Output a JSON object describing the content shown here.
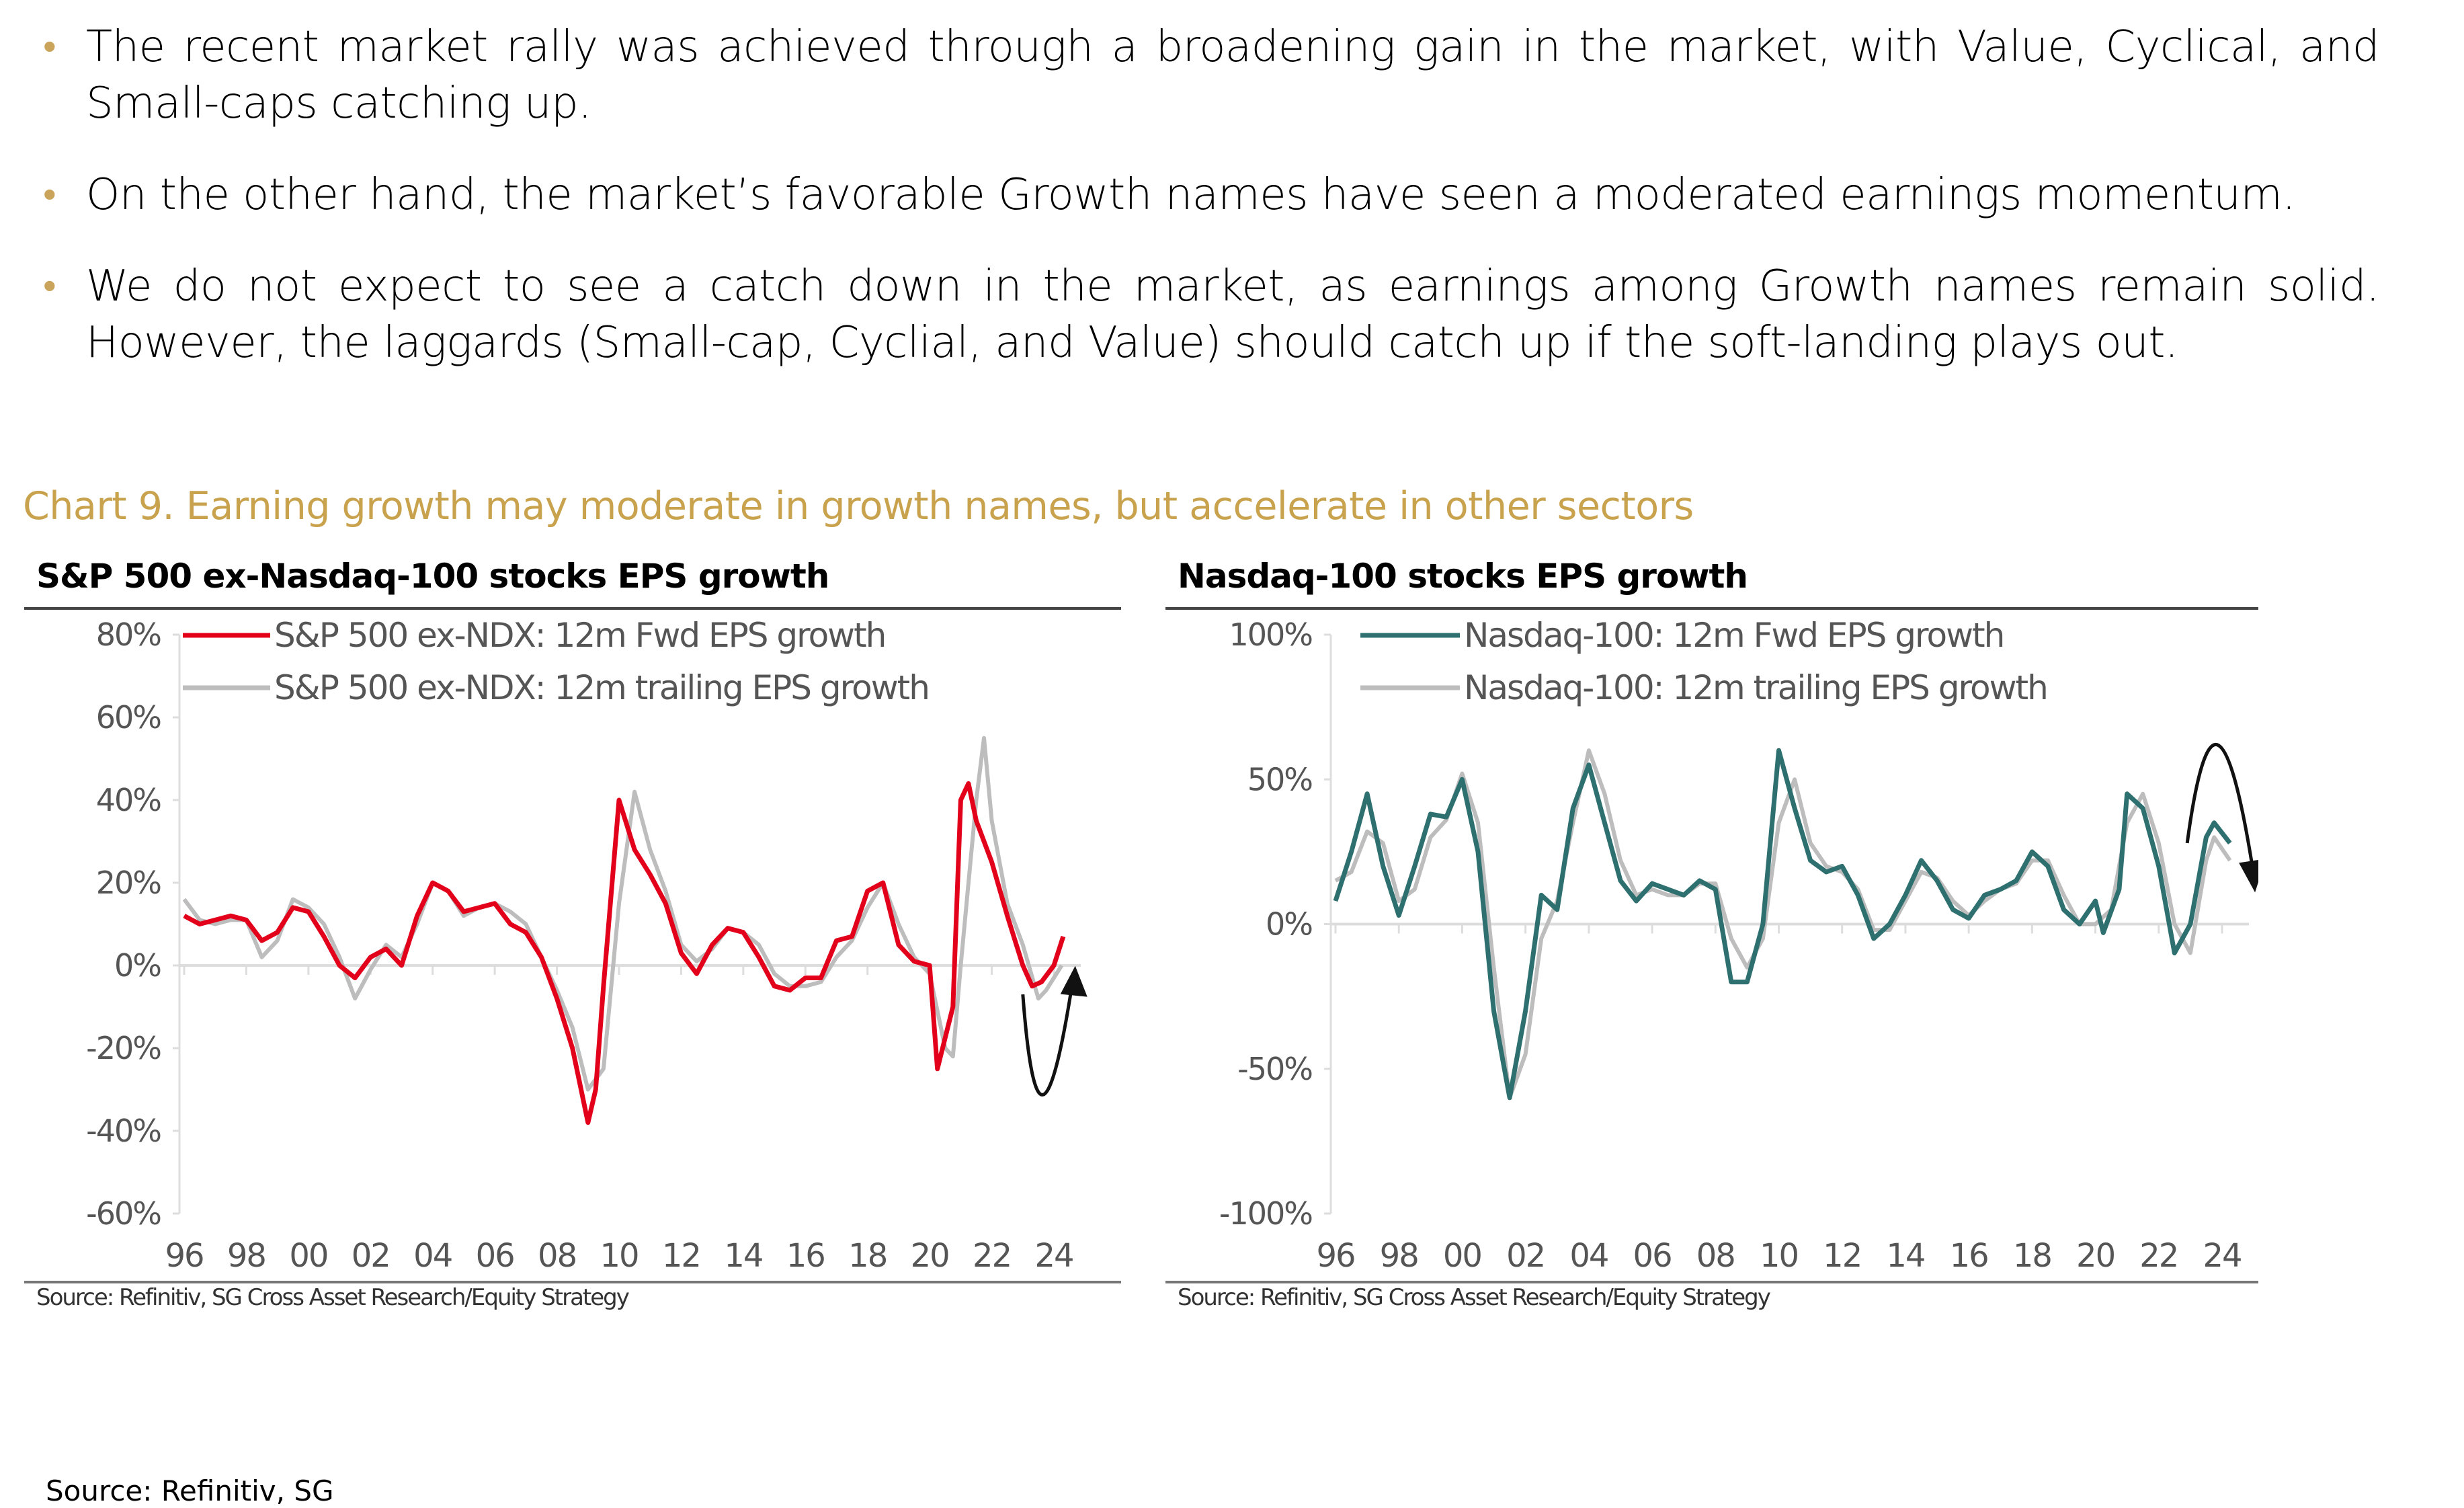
{
  "bullets": [
    "The recent market rally was achieved through a broadening gain in the market, with Value, Cyclical, and Small-caps catching up.",
    "On the other hand, the market’s favorable Growth names have seen a moderated earnings momentum.",
    "We do not expect to see a catch down in the market, as earnings among Growth names remain solid. However, the laggards (Small-cap, Cyclial, and Value) should catch up if the soft-landing plays out."
  ],
  "bullet_marker": "•",
  "caption": "Chart 9. Earning growth may moderate in growth names, but accelerate in other sectors",
  "caption_color": "#c9a24e",
  "footer_source": "Source: Refinitiv, SG",
  "chart_data": [
    {
      "type": "line",
      "title": "S&P 500 ex-Nasdaq-100 stocks EPS growth",
      "source": "Source: Refinitiv, SG Cross Asset Research/Equity Strategy",
      "xlim": [
        1996,
        2025
      ],
      "ylim": [
        -60,
        80
      ],
      "yticks": [
        80,
        60,
        40,
        20,
        0,
        -20,
        -40,
        -60
      ],
      "ytick_labels": [
        "80%",
        "60%",
        "40%",
        "20%",
        "0%",
        "-20%",
        "-40%",
        "-60%"
      ],
      "xtick_labels": [
        "96",
        "98",
        "00",
        "02",
        "04",
        "06",
        "08",
        "10",
        "12",
        "14",
        "16",
        "18",
        "20",
        "22",
        "24"
      ],
      "grid": false,
      "legend": "top-left",
      "annotation": "curved arrow pointing up",
      "series": [
        {
          "name": "S&P 500 ex-NDX: 12m Fwd EPS growth",
          "color": "#e3001b",
          "x": [
            1996,
            1996.5,
            1997,
            1997.5,
            1998,
            1998.5,
            1999,
            1999.5,
            2000,
            2000.5,
            2001,
            2001.5,
            2002,
            2002.5,
            2003,
            2003.5,
            2004,
            2004.5,
            2005,
            2005.5,
            2006,
            2006.5,
            2007,
            2007.5,
            2008,
            2008.5,
            2009,
            2009.25,
            2009.5,
            2010,
            2010.5,
            2011,
            2011.5,
            2012,
            2012.5,
            2013,
            2013.5,
            2014,
            2014.5,
            2015,
            2015.5,
            2016,
            2016.5,
            2017,
            2017.5,
            2018,
            2018.5,
            2019,
            2019.5,
            2020,
            2020.25,
            2020.75,
            2021,
            2021.25,
            2021.5,
            2022,
            2022.5,
            2023,
            2023.3,
            2023.6,
            2024,
            2024.3
          ],
          "y": [
            12,
            10,
            11,
            12,
            11,
            6,
            8,
            14,
            13,
            7,
            0,
            -3,
            2,
            4,
            0,
            12,
            20,
            18,
            13,
            14,
            15,
            10,
            8,
            2,
            -8,
            -20,
            -38,
            -30,
            -5,
            40,
            28,
            22,
            15,
            3,
            -2,
            5,
            9,
            8,
            2,
            -5,
            -6,
            -3,
            -3,
            6,
            7,
            18,
            20,
            5,
            1,
            0,
            -25,
            -10,
            40,
            44,
            35,
            25,
            12,
            0,
            -5,
            -4,
            0,
            7
          ]
        },
        {
          "name": "S&P 500 ex-NDX: 12m trailing EPS growth",
          "color": "#bdbdbd",
          "x": [
            1996,
            1996.5,
            1997,
            1997.5,
            1998,
            1998.5,
            1999,
            1999.5,
            2000,
            2000.5,
            2001,
            2001.5,
            2002,
            2002.5,
            2003,
            2003.5,
            2004,
            2004.5,
            2005,
            2005.5,
            2006,
            2006.5,
            2007,
            2007.5,
            2008,
            2008.5,
            2009,
            2009.5,
            2010,
            2010.5,
            2011,
            2011.5,
            2012,
            2012.5,
            2013,
            2013.5,
            2014,
            2014.5,
            2015,
            2015.5,
            2016,
            2016.5,
            2017,
            2017.5,
            2018,
            2018.5,
            2019,
            2019.5,
            2020,
            2020.5,
            2020.75,
            2021,
            2021.5,
            2021.75,
            2022,
            2022.5,
            2023,
            2023.5,
            2023.75,
            2024.25
          ],
          "y": [
            16,
            11,
            10,
            11,
            11,
            2,
            6,
            16,
            14,
            10,
            2,
            -8,
            -1,
            5,
            2,
            10,
            20,
            18,
            12,
            14,
            15,
            13,
            10,
            2,
            -6,
            -15,
            -30,
            -25,
            15,
            42,
            28,
            18,
            5,
            1,
            4,
            9,
            8,
            5,
            -2,
            -5,
            -5,
            -4,
            2,
            6,
            14,
            20,
            10,
            2,
            -2,
            -20,
            -22,
            0,
            40,
            55,
            35,
            15,
            5,
            -8,
            -6,
            0
          ]
        }
      ]
    },
    {
      "type": "line",
      "title": "Nasdaq-100 stocks EPS growth",
      "source": "Source: Refinitiv, SG Cross Asset Research/Equity Strategy",
      "xlim": [
        1996,
        2025
      ],
      "ylim": [
        -100,
        100
      ],
      "yticks": [
        100,
        50,
        0,
        -50,
        -100
      ],
      "ytick_labels": [
        "100%",
        "50%",
        "0%",
        "-50%",
        "-100%"
      ],
      "xtick_labels": [
        "96",
        "98",
        "00",
        "02",
        "04",
        "06",
        "08",
        "10",
        "12",
        "14",
        "16",
        "18",
        "20",
        "22",
        "24"
      ],
      "grid": false,
      "legend": "top-left",
      "annotation": "curved arrow pointing down",
      "series": [
        {
          "name": "Nasdaq-100:  12m Fwd EPS growth",
          "color": "#2e6f6f",
          "x": [
            1996,
            1996.5,
            1997,
            1997.5,
            1998,
            1998.5,
            1999,
            1999.5,
            2000,
            2000.5,
            2001,
            2001.5,
            2002,
            2002.5,
            2003,
            2003.5,
            2004,
            2004.5,
            2005,
            2005.5,
            2006,
            2006.5,
            2007,
            2007.5,
            2008,
            2008.5,
            2009,
            2009.5,
            2010,
            2010.5,
            2011,
            2011.5,
            2012,
            2012.5,
            2013,
            2013.5,
            2014,
            2014.5,
            2015,
            2015.5,
            2016,
            2016.5,
            2017,
            2017.5,
            2018,
            2018.5,
            2019,
            2019.5,
            2020,
            2020.25,
            2020.75,
            2021,
            2021.5,
            2022,
            2022.5,
            2023,
            2023.5,
            2023.75,
            2024.25
          ],
          "y": [
            8,
            25,
            45,
            20,
            3,
            20,
            38,
            37,
            50,
            25,
            -30,
            -60,
            -30,
            10,
            5,
            40,
            55,
            35,
            15,
            8,
            14,
            12,
            10,
            15,
            12,
            -20,
            -20,
            0,
            60,
            40,
            22,
            18,
            20,
            10,
            -5,
            0,
            10,
            22,
            15,
            5,
            2,
            10,
            12,
            15,
            25,
            20,
            5,
            0,
            8,
            -3,
            12,
            45,
            40,
            20,
            -10,
            0,
            30,
            35,
            28
          ]
        },
        {
          "name": "Nasdaq-100: 12m trailing EPS growth",
          "color": "#bdbdbd",
          "x": [
            1996,
            1996.5,
            1997,
            1997.5,
            1998,
            1998.5,
            1999,
            1999.5,
            2000,
            2000.5,
            2001,
            2001.5,
            2002,
            2002.5,
            2003,
            2003.5,
            2004,
            2004.5,
            2005,
            2005.5,
            2006,
            2006.5,
            2007,
            2007.5,
            2008,
            2008.5,
            2009,
            2009.5,
            2010,
            2010.5,
            2011,
            2011.5,
            2012,
            2012.5,
            2013,
            2013.5,
            2014,
            2014.5,
            2015,
            2015.5,
            2016,
            2016.5,
            2017,
            2017.5,
            2018,
            2018.5,
            2019,
            2019.5,
            2020,
            2020.5,
            2021,
            2021.5,
            2022,
            2022.5,
            2023,
            2023.5,
            2023.75,
            2024.25
          ],
          "y": [
            15,
            18,
            32,
            28,
            8,
            12,
            30,
            36,
            52,
            35,
            -15,
            -60,
            -45,
            -5,
            8,
            35,
            60,
            45,
            22,
            10,
            12,
            10,
            10,
            14,
            14,
            -5,
            -15,
            -5,
            35,
            50,
            28,
            20,
            18,
            12,
            -2,
            -2,
            8,
            18,
            16,
            8,
            3,
            8,
            12,
            14,
            22,
            22,
            10,
            0,
            0,
            5,
            35,
            45,
            28,
            0,
            -10,
            22,
            30,
            22
          ]
        }
      ]
    }
  ]
}
